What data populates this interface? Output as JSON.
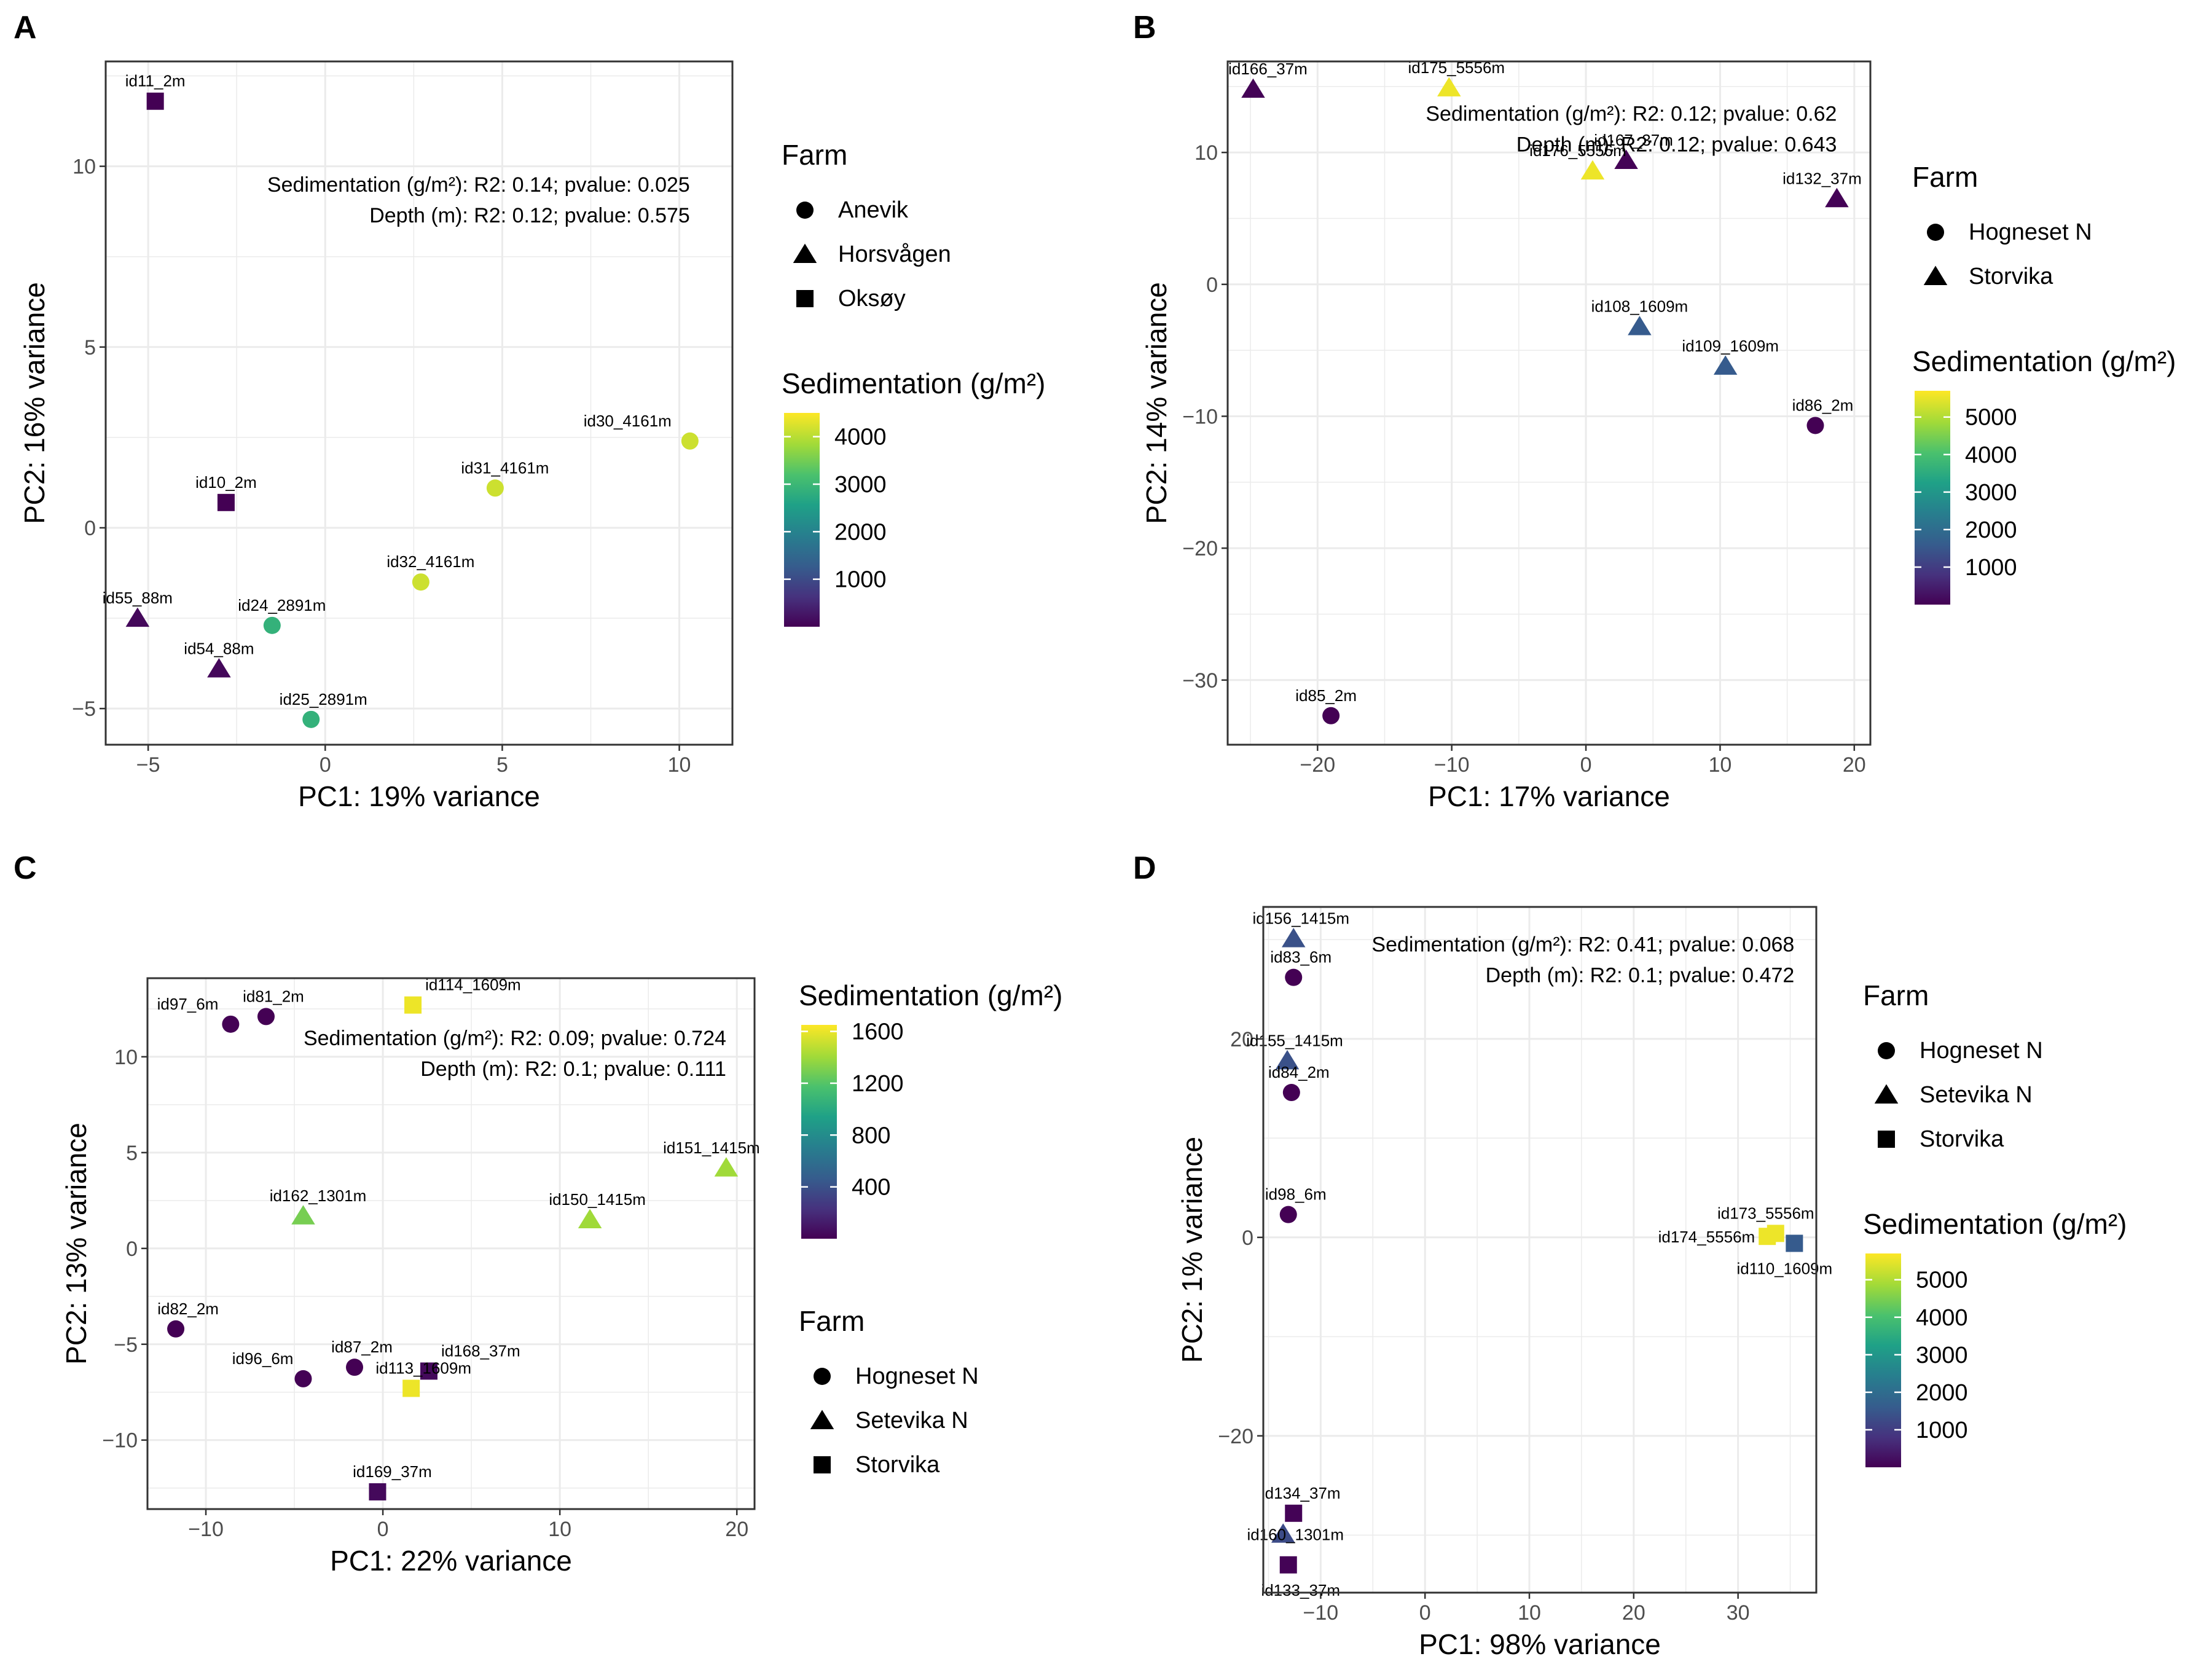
{
  "colors": {
    "viridis": [
      "#440154",
      "#46327e",
      "#365c8d",
      "#277f8e",
      "#1fa187",
      "#4ac16d",
      "#a0da39",
      "#fde725"
    ],
    "panel_border": "#333333",
    "grid": "#ebebeb",
    "text": "#000000",
    "axis_text": "#4d4d4d"
  },
  "chart_data": [
    {
      "type": "scatter",
      "panel_label": "A",
      "xlabel": "PC1: 19% variance",
      "ylabel": "PC2: 16% variance",
      "xlim": [
        -6.2,
        11.5
      ],
      "ylim": [
        -6.0,
        12.9
      ],
      "xticks": [
        -5,
        0,
        5,
        10
      ],
      "yticks": [
        -5,
        0,
        5,
        10
      ],
      "xtick_labels": [
        "−5",
        "0",
        "5",
        "10"
      ],
      "ytick_labels": [
        "−5",
        "0",
        "5",
        "10"
      ],
      "annotations": [
        "Sedimentation (g/m²): R2: 0.14; pvalue: 0.025",
        "Depth (m): R2: 0.12; pvalue: 0.575"
      ],
      "annotation_anchor": [
        10.3,
        9.3
      ],
      "shape_legend": {
        "title": "Farm",
        "entries": [
          {
            "label": "Anevik",
            "shape": "circle"
          },
          {
            "label": "Horsvågen",
            "shape": "triangle"
          },
          {
            "label": "Oksøy",
            "shape": "square"
          }
        ]
      },
      "color_legend": {
        "title": "Sedimentation (g/m²)",
        "min": 0,
        "max": 4500,
        "ticks": [
          1000,
          2000,
          3000,
          4000
        ],
        "tick_labels": [
          "1000",
          "2000",
          "3000",
          "4000"
        ]
      },
      "legend_order": [
        "shape",
        "color"
      ],
      "points": [
        {
          "label": "id11_2m",
          "x": -4.8,
          "y": 11.8,
          "shape": "square",
          "sed": 2,
          "ldx": 0,
          "ldy": -1
        },
        {
          "label": "id10_2m",
          "x": -2.8,
          "y": 0.7,
          "shape": "square",
          "sed": 2,
          "ldx": 0,
          "ldy": -1
        },
        {
          "label": "id55_88m",
          "x": -5.3,
          "y": -2.5,
          "shape": "triangle",
          "sed": 88,
          "ldx": 0,
          "ldy": -1
        },
        {
          "label": "id54_88m",
          "x": -3.0,
          "y": -3.9,
          "shape": "triangle",
          "sed": 88,
          "ldx": 0,
          "ldy": -1
        },
        {
          "label": "id24_2891m",
          "x": -1.5,
          "y": -2.7,
          "shape": "circle",
          "sed": 2891,
          "ldx": 0.4,
          "ldy": -1
        },
        {
          "label": "id25_2891m",
          "x": -0.4,
          "y": -5.3,
          "shape": "circle",
          "sed": 2891,
          "ldx": 0.5,
          "ldy": -1
        },
        {
          "label": "id32_4161m",
          "x": 2.7,
          "y": -1.5,
          "shape": "circle",
          "sed": 4161,
          "ldx": 0.4,
          "ldy": -1
        },
        {
          "label": "id31_4161m",
          "x": 4.8,
          "y": 1.1,
          "shape": "circle",
          "sed": 4161,
          "ldx": 0.4,
          "ldy": -1
        },
        {
          "label": "id30_4161m",
          "x": 10.3,
          "y": 2.4,
          "shape": "circle",
          "sed": 4161,
          "ldx": -1.5,
          "ldy": -1
        }
      ]
    },
    {
      "type": "scatter",
      "panel_label": "B",
      "xlabel": "PC1: 17% variance",
      "ylabel": "PC2: 14% variance",
      "xlim": [
        -26.7,
        21.2
      ],
      "ylim": [
        -34.9,
        16.9
      ],
      "xticks": [
        -20,
        -10,
        0,
        10,
        20
      ],
      "yticks": [
        -30,
        -20,
        -10,
        0,
        10
      ],
      "xtick_labels": [
        "−20",
        "−10",
        "0",
        "10",
        "20"
      ],
      "ytick_labels": [
        "−30",
        "−20",
        "−10",
        "0",
        "10"
      ],
      "annotations": [
        "Sedimentation (g/m²): R2: 0.12; pvalue: 0.62",
        "Depth (m): R2: 0.12; pvalue: 0.643"
      ],
      "annotation_anchor": [
        18.7,
        12.4
      ],
      "shape_legend": {
        "title": "Farm",
        "entries": [
          {
            "label": "Hogneset N",
            "shape": "circle"
          },
          {
            "label": "Storvika",
            "shape": "triangle"
          }
        ]
      },
      "color_legend": {
        "title": "Sedimentation (g/m²)",
        "min": 0,
        "max": 5700,
        "ticks": [
          1000,
          2000,
          3000,
          4000,
          5000
        ],
        "tick_labels": [
          "1000",
          "2000",
          "3000",
          "4000",
          "5000"
        ]
      },
      "legend_order": [
        "shape",
        "color"
      ],
      "points": [
        {
          "label": "id166_37m",
          "x": -24.8,
          "y": 14.8,
          "shape": "triangle",
          "sed": 37,
          "ldx": 0.6,
          "ldy": -1
        },
        {
          "label": "id175_5556m",
          "x": -10.2,
          "y": 14.9,
          "shape": "triangle",
          "sed": 5556,
          "ldx": 0.3,
          "ldy": -1
        },
        {
          "label": "id176_5556m",
          "x": 0.5,
          "y": 8.6,
          "shape": "triangle",
          "sed": 5556,
          "ldx": -0.6,
          "ldy": -1
        },
        {
          "label": "id167_37m",
          "x": 3.0,
          "y": 9.4,
          "shape": "triangle",
          "sed": 37,
          "ldx": 0.3,
          "ldy": -1
        },
        {
          "label": "id132_37m",
          "x": 18.7,
          "y": 6.5,
          "shape": "triangle",
          "sed": 37,
          "ldx": -0.6,
          "ldy": -1
        },
        {
          "label": "id108_1609m",
          "x": 4.0,
          "y": -3.2,
          "shape": "triangle",
          "sed": 1609,
          "ldx": 0,
          "ldy": -1
        },
        {
          "label": "id109_1609m",
          "x": 10.4,
          "y": -6.2,
          "shape": "triangle",
          "sed": 1609,
          "ldx": 0.2,
          "ldy": -1
        },
        {
          "label": "id86_2m",
          "x": 17.1,
          "y": -10.7,
          "shape": "circle",
          "sed": 2,
          "ldx": 0.3,
          "ldy": -1
        },
        {
          "label": "id85_2m",
          "x": -19.0,
          "y": -32.7,
          "shape": "circle",
          "sed": 2,
          "ldx": -0.2,
          "ldy": -1
        }
      ]
    },
    {
      "type": "scatter",
      "panel_label": "C",
      "xlabel": "PC1: 22% variance",
      "ylabel": "PC2: 13% variance",
      "xlim": [
        -13.3,
        21.0
      ],
      "ylim": [
        -13.6,
        14.1
      ],
      "xticks": [
        -10,
        0,
        10,
        20
      ],
      "yticks": [
        -10,
        -5,
        0,
        5,
        10
      ],
      "xtick_labels": [
        "−10",
        "0",
        "10",
        "20"
      ],
      "ytick_labels": [
        "−10",
        "−5",
        "0",
        "5",
        "10"
      ],
      "annotations": [
        "Sedimentation (g/m²): R2: 0.09; pvalue: 0.724",
        "Depth (m): R2: 0.1; pvalue: 0.111"
      ],
      "annotation_anchor": [
        19.4,
        10.6
      ],
      "shape_legend": {
        "title": "Farm",
        "entries": [
          {
            "label": "Hogneset N",
            "shape": "circle"
          },
          {
            "label": "Setevika N",
            "shape": "triangle"
          },
          {
            "label": "Storvika",
            "shape": "square"
          }
        ]
      },
      "color_legend": {
        "title": "Sedimentation (g/m²)",
        "min": 0,
        "max": 1650,
        "ticks": [
          400,
          800,
          1200,
          1600
        ],
        "tick_labels": [
          "400",
          "800",
          "1200",
          "1600"
        ]
      },
      "legend_order": [
        "color",
        "shape"
      ],
      "points": [
        {
          "label": "id97_6m",
          "x": -8.6,
          "y": 11.7,
          "shape": "circle",
          "sed": 6,
          "ldx": -1,
          "ldy": -1
        },
        {
          "label": "id81_2m",
          "x": -6.6,
          "y": 12.1,
          "shape": "circle",
          "sed": 2,
          "ldx": 0.3,
          "ldy": -1
        },
        {
          "label": "id114_1609m",
          "x": 1.7,
          "y": 12.7,
          "shape": "square",
          "sed": 1609,
          "ldx": 1,
          "ldy": -1
        },
        {
          "label": "id151_1415m",
          "x": 19.4,
          "y": 4.2,
          "shape": "triangle",
          "sed": 1415,
          "ldx": -0.6,
          "ldy": -1
        },
        {
          "label": "id162_1301m",
          "x": -4.5,
          "y": 1.7,
          "shape": "triangle",
          "sed": 1301,
          "ldx": 0.6,
          "ldy": -1
        },
        {
          "label": "id150_1415m",
          "x": 11.7,
          "y": 1.5,
          "shape": "triangle",
          "sed": 1415,
          "ldx": 0.3,
          "ldy": -1
        },
        {
          "label": "id82_2m",
          "x": -11.7,
          "y": -4.2,
          "shape": "circle",
          "sed": 2,
          "ldx": 0.5,
          "ldy": -1
        },
        {
          "label": "id96_6m",
          "x": -4.5,
          "y": -6.8,
          "shape": "circle",
          "sed": 6,
          "ldx": -0.8,
          "ldy": -1
        },
        {
          "label": "id87_2m",
          "x": -1.6,
          "y": -6.2,
          "shape": "circle",
          "sed": 2,
          "ldx": 0.3,
          "ldy": -1
        },
        {
          "label": "id168_37m",
          "x": 2.6,
          "y": -6.4,
          "shape": "square",
          "sed": 37,
          "ldx": 1,
          "ldy": -1
        },
        {
          "label": "id113_1609m",
          "x": 1.6,
          "y": -7.3,
          "shape": "square",
          "sed": 1609,
          "ldx": 0.5,
          "ldy": -0.3
        },
        {
          "label": "id169_37m",
          "x": -0.3,
          "y": -12.7,
          "shape": "square",
          "sed": 37,
          "ldx": 0.6,
          "ldy": -1
        }
      ]
    },
    {
      "type": "scatter",
      "panel_label": "D",
      "xlabel": "PC1: 98% variance",
      "ylabel": "PC2: 1% variance",
      "xlim": [
        -15.5,
        37.5
      ],
      "ylim": [
        -35.8,
        33.3
      ],
      "xticks": [
        -10,
        0,
        10,
        20,
        30
      ],
      "yticks": [
        -20,
        0,
        20
      ],
      "xtick_labels": [
        "−10",
        "0",
        "10",
        "20",
        "30"
      ],
      "ytick_labels": [
        "−20",
        "0",
        "20"
      ],
      "annotations": [
        "Sedimentation (g/m²): R2: 0.41; pvalue: 0.068",
        "Depth (m): R2: 0.1; pvalue: 0.472"
      ],
      "annotation_anchor": [
        35.4,
        28.8
      ],
      "shape_legend": {
        "title": "Farm",
        "entries": [
          {
            "label": "Hogneset N",
            "shape": "circle"
          },
          {
            "label": "Setevika N",
            "shape": "triangle"
          },
          {
            "label": "Storvika",
            "shape": "square"
          }
        ]
      },
      "color_legend": {
        "title": "Sedimentation (g/m²)",
        "min": 0,
        "max": 5700,
        "ticks": [
          1000,
          2000,
          3000,
          4000,
          5000
        ],
        "tick_labels": [
          "1000",
          "2000",
          "3000",
          "4000",
          "5000"
        ]
      },
      "legend_order": [
        "shape",
        "color"
      ],
      "points": [
        {
          "label": "id156_1415m",
          "x": -12.6,
          "y": 30.1,
          "shape": "triangle",
          "sed": 1415,
          "ldx": 0.3,
          "ldy": -1
        },
        {
          "label": "id83_6m",
          "x": -12.6,
          "y": 26.2,
          "shape": "circle",
          "sed": 6,
          "ldx": 0.3,
          "ldy": -1
        },
        {
          "label": "id155_1415m",
          "x": -13.2,
          "y": 17.8,
          "shape": "triangle",
          "sed": 1415,
          "ldx": 0.3,
          "ldy": -1
        },
        {
          "label": "id84_2m",
          "x": -12.8,
          "y": 14.6,
          "shape": "circle",
          "sed": 2,
          "ldx": 0.3,
          "ldy": -1
        },
        {
          "label": "id98_6m",
          "x": -13.1,
          "y": 2.3,
          "shape": "circle",
          "sed": 6,
          "ldx": 0.3,
          "ldy": -1
        },
        {
          "label": "id173_5556m",
          "x": 33.6,
          "y": 0.4,
          "shape": "square",
          "sed": 5556,
          "ldx": -0.4,
          "ldy": -1
        },
        {
          "label": "id174_5556m",
          "x": 32.8,
          "y": 0.1,
          "shape": "square",
          "sed": 5556,
          "ldx": -1,
          "ldy": 0
        },
        {
          "label": "id110_1609m",
          "x": 35.4,
          "y": -0.6,
          "shape": "square",
          "sed": 1609,
          "ldx": -0.4,
          "ldy": 1
        },
        {
          "label": "id134_37m",
          "x": -12.6,
          "y": -27.8,
          "shape": "square",
          "sed": 37,
          "ldx": 0.3,
          "ldy": -1
        },
        {
          "label": "id160_1301m",
          "x": -13.6,
          "y": -29.9,
          "shape": "triangle",
          "sed": 1301,
          "ldx": 0.5,
          "ldy": 0
        },
        {
          "label": "id133_37m",
          "x": -13.1,
          "y": -33.0,
          "shape": "square",
          "sed": 37,
          "ldx": 0.5,
          "ldy": 1
        }
      ]
    }
  ]
}
